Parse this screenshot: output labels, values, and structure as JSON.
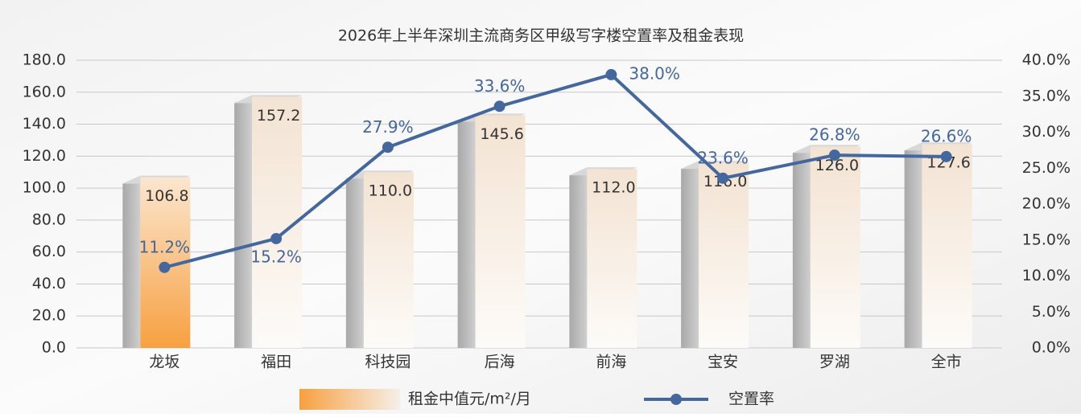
{
  "chart_data": {
    "type": "bar",
    "title": "2026年上半年深圳主流商务区甲级写字楼空置率及租金表现",
    "categories": [
      "龙坂",
      "福田",
      "科技园",
      "后海",
      "前海",
      "宝安",
      "罗湖",
      "全市"
    ],
    "series": [
      {
        "name": "租金中值元/m²/月",
        "color": "#f7a04a",
        "values": [
          106.8,
          157.2,
          110.0,
          145.6,
          112.0,
          116.0,
          126.0,
          127.6
        ],
        "value_labels": [
          "106.8",
          "157.2",
          "110.0",
          "145.6",
          "112.0",
          "116.0",
          "126.0",
          "127.6"
        ]
      },
      {
        "name": "空置率",
        "type": "line",
        "axis": "y2",
        "color": "#44689e",
        "values": [
          11.2,
          15.2,
          27.9,
          33.6,
          38.0,
          23.6,
          26.8,
          26.6
        ],
        "value_labels": [
          "11.2%",
          "15.2%",
          "27.9%",
          "33.6%",
          "38.0%",
          "23.6%",
          "26.8%",
          "26.6%"
        ]
      }
    ],
    "ylim": [
      0,
      180
    ],
    "yticks": [
      {
        "value": 0,
        "label": "0.0"
      },
      {
        "value": 20,
        "label": "20.0"
      },
      {
        "value": 40,
        "label": "40.0"
      },
      {
        "value": 60,
        "label": "60.0"
      },
      {
        "value": 80,
        "label": "80.0"
      },
      {
        "value": 100,
        "label": "100.0"
      },
      {
        "value": 120,
        "label": "120.0"
      },
      {
        "value": 140,
        "label": "140.0"
      },
      {
        "value": 160,
        "label": "160.0"
      },
      {
        "value": 180,
        "label": "180.0"
      }
    ],
    "y2lim": [
      0,
      40
    ],
    "y2ticks": [
      {
        "value": 0,
        "label": "0.0%"
      },
      {
        "value": 5,
        "label": "5.0%"
      },
      {
        "value": 10,
        "label": "10.0%"
      },
      {
        "value": 15,
        "label": "15.0%"
      },
      {
        "value": 20,
        "label": "20.0%"
      },
      {
        "value": 25,
        "label": "25.0%"
      },
      {
        "value": 30,
        "label": "30.0%"
      },
      {
        "value": 35,
        "label": "35.0%"
      },
      {
        "value": 40,
        "label": "40.0%"
      }
    ],
    "grid": true
  }
}
